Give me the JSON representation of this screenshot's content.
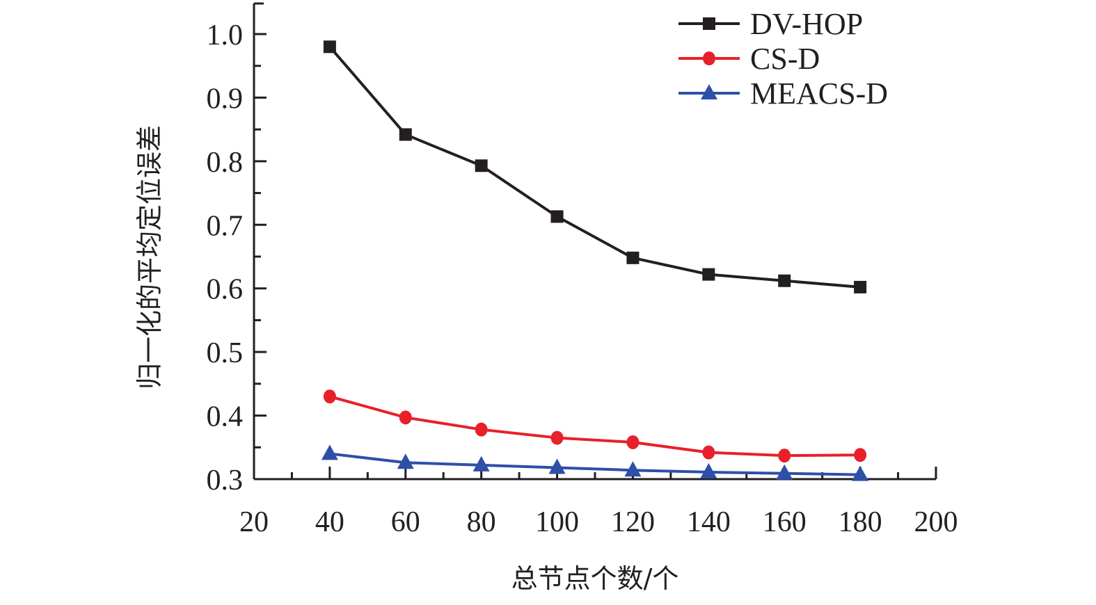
{
  "chart_data": {
    "type": "line",
    "title": "",
    "xlabel": "总节点个数/个",
    "ylabel": "归一化的平均定位误差",
    "xlim": [
      20,
      200
    ],
    "ylim": [
      0.3,
      1.05
    ],
    "x_ticks": [
      20,
      40,
      60,
      80,
      100,
      120,
      140,
      160,
      180,
      200
    ],
    "x_tick_labels": [
      "20",
      "40",
      "60",
      "80",
      "100",
      "120",
      "140",
      "160",
      "180",
      "200"
    ],
    "y_ticks": [
      0.3,
      0.4,
      0.5,
      0.6,
      0.7,
      0.8,
      0.9,
      1.0
    ],
    "y_tick_labels": [
      "0.3",
      "0.4",
      "0.5",
      "0.6",
      "0.7",
      "0.8",
      "0.9",
      "1.0"
    ],
    "grid": false,
    "legend_position": "top-right",
    "x": [
      40,
      60,
      80,
      100,
      120,
      140,
      160,
      180
    ],
    "series": [
      {
        "name": "DV-HOP",
        "color": "#231f20",
        "marker": "square",
        "values": [
          0.98,
          0.842,
          0.793,
          0.713,
          0.648,
          0.622,
          0.612,
          0.602
        ]
      },
      {
        "name": "CS-D",
        "color": "#e8202a",
        "marker": "circle",
        "values": [
          0.43,
          0.397,
          0.378,
          0.365,
          0.358,
          0.342,
          0.337,
          0.338
        ]
      },
      {
        "name": "MEACS-D",
        "color": "#2e4fa8",
        "marker": "triangle",
        "values": [
          0.34,
          0.326,
          0.322,
          0.318,
          0.314,
          0.311,
          0.309,
          0.307
        ]
      }
    ]
  }
}
